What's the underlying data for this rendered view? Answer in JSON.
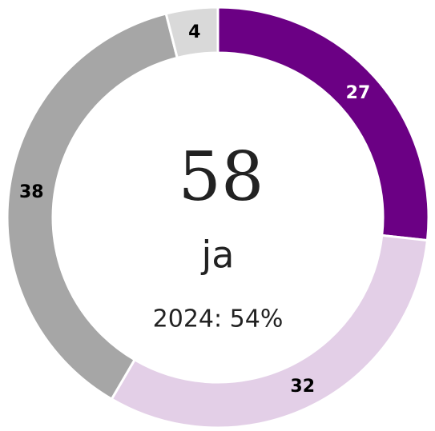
{
  "chart_data": {
    "type": "donut",
    "values": [
      27,
      32,
      38,
      4
    ],
    "colors": [
      "#6b0084",
      "#e3cfe7",
      "#a6a6a6",
      "#d9d9d9"
    ],
    "label_colors": [
      "#ffffff",
      "#000000",
      "#000000",
      "#000000"
    ],
    "center_value": "58",
    "center_label": "ja",
    "center_note": "2024: 54%"
  }
}
